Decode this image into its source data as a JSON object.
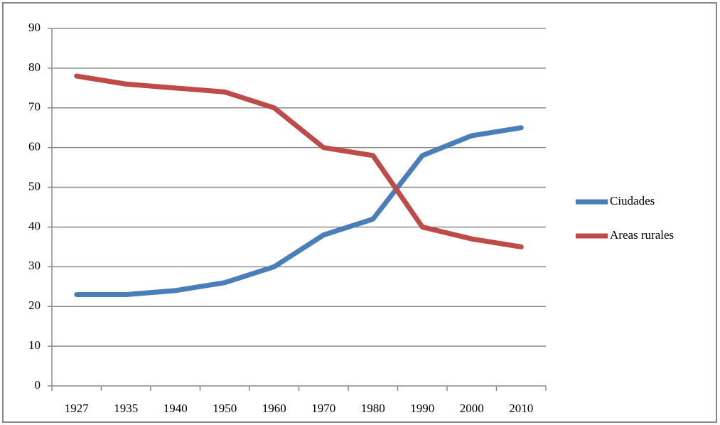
{
  "chart_data": {
    "type": "line",
    "categories": [
      "1927",
      "1935",
      "1940",
      "1950",
      "1960",
      "1970",
      "1980",
      "1990",
      "2000",
      "2010"
    ],
    "series": [
      {
        "name": "Ciudades",
        "color": "#4a7ebb",
        "values": [
          23,
          23,
          24,
          26,
          30,
          38,
          42,
          58,
          63,
          65
        ]
      },
      {
        "name": "Areas rurales",
        "color": "#be4b48",
        "values": [
          78,
          76,
          75,
          74,
          70,
          60,
          58,
          40,
          37,
          35
        ]
      }
    ],
    "ylim": [
      0,
      90
    ],
    "yticks": [
      0,
      10,
      20,
      30,
      40,
      50,
      60,
      70,
      80,
      90
    ],
    "grid": true,
    "legend": "right"
  }
}
